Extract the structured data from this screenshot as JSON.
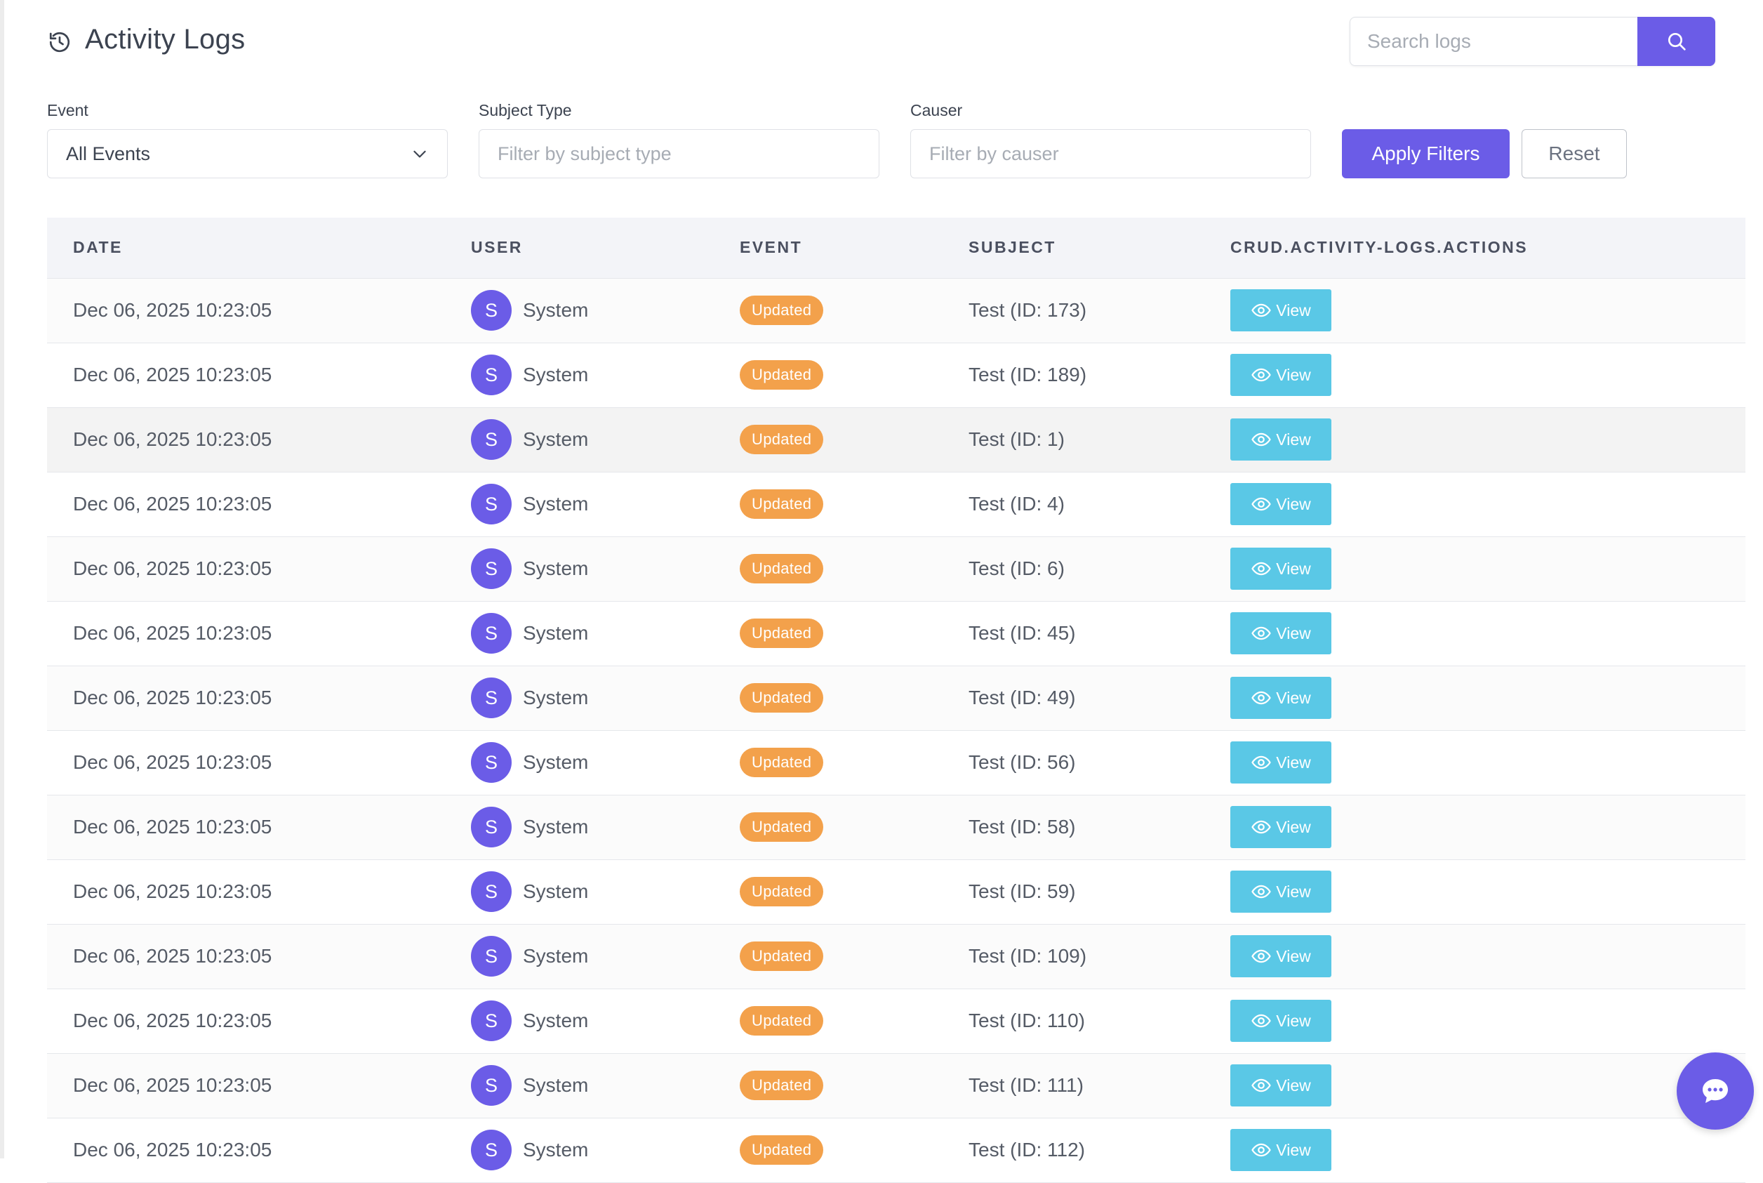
{
  "header": {
    "title": "Activity Logs",
    "title_icon": "history-icon"
  },
  "search": {
    "placeholder": "Search logs",
    "button_icon": "search-icon"
  },
  "filters": {
    "event": {
      "label": "Event",
      "selected": "All Events"
    },
    "subject_type": {
      "label": "Subject Type",
      "placeholder": "Filter by subject type"
    },
    "causer": {
      "label": "Causer",
      "placeholder": "Filter by causer"
    },
    "apply_label": "Apply Filters",
    "reset_label": "Reset"
  },
  "table": {
    "columns": [
      "DATE",
      "USER",
      "EVENT",
      "SUBJECT",
      "CRUD.ACTIVITY-LOGS.ACTIONS"
    ],
    "rows": [
      {
        "date": "Dec 06, 2025 10:23:05",
        "avatar": "S",
        "user": "System",
        "event": "Updated",
        "subject": "Test (ID: 173)",
        "action": "View"
      },
      {
        "date": "Dec 06, 2025 10:23:05",
        "avatar": "S",
        "user": "System",
        "event": "Updated",
        "subject": "Test (ID: 189)",
        "action": "View"
      },
      {
        "date": "Dec 06, 2025 10:23:05",
        "avatar": "S",
        "user": "System",
        "event": "Updated",
        "subject": "Test (ID: 1)",
        "action": "View"
      },
      {
        "date": "Dec 06, 2025 10:23:05",
        "avatar": "S",
        "user": "System",
        "event": "Updated",
        "subject": "Test (ID: 4)",
        "action": "View"
      },
      {
        "date": "Dec 06, 2025 10:23:05",
        "avatar": "S",
        "user": "System",
        "event": "Updated",
        "subject": "Test (ID: 6)",
        "action": "View"
      },
      {
        "date": "Dec 06, 2025 10:23:05",
        "avatar": "S",
        "user": "System",
        "event": "Updated",
        "subject": "Test (ID: 45)",
        "action": "View"
      },
      {
        "date": "Dec 06, 2025 10:23:05",
        "avatar": "S",
        "user": "System",
        "event": "Updated",
        "subject": "Test (ID: 49)",
        "action": "View"
      },
      {
        "date": "Dec 06, 2025 10:23:05",
        "avatar": "S",
        "user": "System",
        "event": "Updated",
        "subject": "Test (ID: 56)",
        "action": "View"
      },
      {
        "date": "Dec 06, 2025 10:23:05",
        "avatar": "S",
        "user": "System",
        "event": "Updated",
        "subject": "Test (ID: 58)",
        "action": "View"
      },
      {
        "date": "Dec 06, 2025 10:23:05",
        "avatar": "S",
        "user": "System",
        "event": "Updated",
        "subject": "Test (ID: 59)",
        "action": "View"
      },
      {
        "date": "Dec 06, 2025 10:23:05",
        "avatar": "S",
        "user": "System",
        "event": "Updated",
        "subject": "Test (ID: 109)",
        "action": "View"
      },
      {
        "date": "Dec 06, 2025 10:23:05",
        "avatar": "S",
        "user": "System",
        "event": "Updated",
        "subject": "Test (ID: 110)",
        "action": "View"
      },
      {
        "date": "Dec 06, 2025 10:23:05",
        "avatar": "S",
        "user": "System",
        "event": "Updated",
        "subject": "Test (ID: 111)",
        "action": "View"
      },
      {
        "date": "Dec 06, 2025 10:23:05",
        "avatar": "S",
        "user": "System",
        "event": "Updated",
        "subject": "Test (ID: 112)",
        "action": "View"
      }
    ]
  },
  "chat_fab": {
    "icon": "chat-bubble-icon"
  },
  "colors": {
    "primary": "#6b5ce7",
    "badge_updated": "#f3a14b",
    "view_button": "#5ac8e6"
  }
}
